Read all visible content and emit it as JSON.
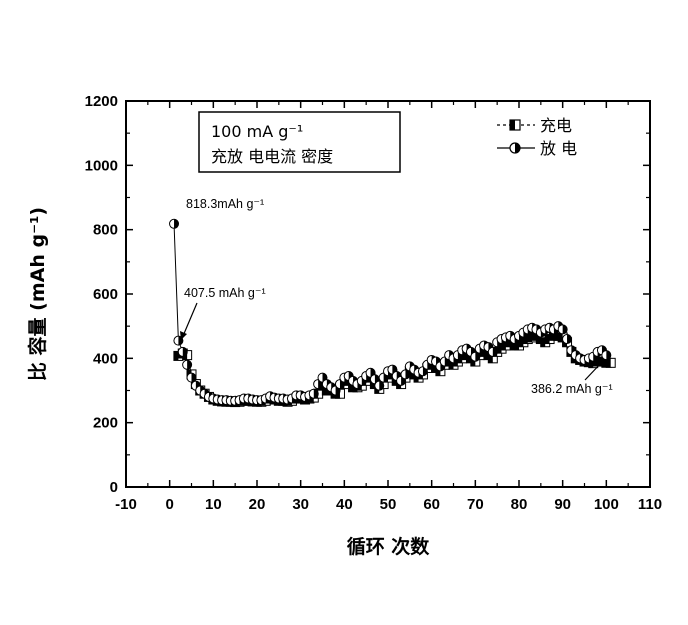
{
  "chart_data": {
    "type": "scatter",
    "xlabel": "循环 次数",
    "ylabel": "比 容量 (mAh g⁻¹)",
    "xlim": [
      -10,
      110
    ],
    "ylim": [
      0,
      1200
    ],
    "xticks": [
      "-10",
      "0",
      "10",
      "20",
      "30",
      "40",
      "50",
      "60",
      "70",
      "80",
      "90",
      "100",
      "110"
    ],
    "yticks": [
      "0",
      "200",
      "400",
      "600",
      "800",
      "1000",
      "1200"
    ],
    "info_box": [
      "100 mA g⁻¹",
      "充放 电电流 密度"
    ],
    "legend": {
      "position": "top-right",
      "charge": "充电",
      "discharge": "放 电"
    },
    "annotations": [
      {
        "text": "818.3mAh g⁻¹",
        "x": 1,
        "y": 818.3
      },
      {
        "text": "407.5 mAh g⁻¹",
        "x": 2,
        "y": 407.5
      },
      {
        "text": "386.2 mAh g⁻¹",
        "x": 100,
        "y": 386.2
      }
    ],
    "series": [
      {
        "name": "充电",
        "marker": "half-filled-square",
        "x": [
          2,
          3,
          4,
          5,
          6,
          7,
          8,
          9,
          10,
          11,
          12,
          13,
          14,
          15,
          16,
          17,
          18,
          19,
          20,
          21,
          22,
          23,
          24,
          25,
          26,
          27,
          28,
          29,
          30,
          31,
          32,
          33,
          34,
          35,
          36,
          37,
          38,
          39,
          40,
          41,
          42,
          43,
          44,
          45,
          46,
          47,
          48,
          49,
          50,
          51,
          52,
          53,
          54,
          55,
          56,
          57,
          58,
          59,
          60,
          61,
          62,
          63,
          64,
          65,
          66,
          67,
          68,
          69,
          70,
          71,
          72,
          73,
          74,
          75,
          76,
          77,
          78,
          79,
          80,
          81,
          82,
          83,
          84,
          85,
          86,
          87,
          88,
          89,
          90,
          91,
          92,
          93,
          94,
          95,
          96,
          97,
          98,
          99,
          100,
          101
        ],
        "y": [
          407.5,
          415,
          410,
          350,
          320,
          300,
          290,
          280,
          272,
          268,
          266,
          265,
          265,
          264,
          265,
          268,
          268,
          266,
          265,
          265,
          268,
          275,
          272,
          268,
          268,
          265,
          268,
          275,
          275,
          272,
          275,
          278,
          290,
          315,
          300,
          300,
          290,
          290,
          320,
          330,
          310,
          310,
          315,
          330,
          340,
          320,
          305,
          320,
          340,
          350,
          330,
          320,
          340,
          360,
          350,
          340,
          350,
          370,
          380,
          370,
          360,
          380,
          390,
          380,
          390,
          400,
          410,
          400,
          390,
          410,
          420,
          410,
          400,
          420,
          430,
          440,
          450,
          440,
          440,
          450,
          460,
          465,
          470,
          460,
          450,
          460,
          470,
          470,
          465,
          450,
          420,
          400,
          395,
          390,
          388,
          385,
          390,
          390,
          386.2,
          386
        ]
      },
      {
        "name": "放 电",
        "marker": "half-filled-circle",
        "x": [
          1,
          2,
          3,
          4,
          5,
          6,
          7,
          8,
          9,
          10,
          11,
          12,
          13,
          14,
          15,
          16,
          17,
          18,
          19,
          20,
          21,
          22,
          23,
          24,
          25,
          26,
          27,
          28,
          29,
          30,
          31,
          32,
          33,
          34,
          35,
          36,
          37,
          38,
          39,
          40,
          41,
          42,
          43,
          44,
          45,
          46,
          47,
          48,
          49,
          50,
          51,
          52,
          53,
          54,
          55,
          56,
          57,
          58,
          59,
          60,
          61,
          62,
          63,
          64,
          65,
          66,
          67,
          68,
          69,
          70,
          71,
          72,
          73,
          74,
          75,
          76,
          77,
          78,
          79,
          80,
          81,
          82,
          83,
          84,
          85,
          86,
          87,
          88,
          89,
          90,
          91,
          92,
          93,
          94,
          95,
          96,
          97,
          98,
          99,
          100
        ],
        "y": [
          818.3,
          455,
          420,
          380,
          340,
          315,
          300,
          290,
          280,
          275,
          272,
          270,
          270,
          268,
          268,
          270,
          275,
          275,
          272,
          270,
          270,
          275,
          282,
          278,
          275,
          275,
          272,
          275,
          285,
          285,
          280,
          285,
          290,
          320,
          340,
          320,
          310,
          300,
          320,
          340,
          345,
          330,
          320,
          330,
          345,
          355,
          335,
          315,
          340,
          360,
          365,
          345,
          330,
          350,
          375,
          365,
          355,
          360,
          380,
          395,
          390,
          375,
          390,
          410,
          400,
          410,
          425,
          430,
          420,
          405,
          430,
          440,
          435,
          420,
          450,
          460,
          465,
          470,
          460,
          470,
          480,
          490,
          495,
          490,
          480,
          490,
          495,
          490,
          500,
          490,
          460,
          425,
          410,
          400,
          395,
          400,
          405,
          420,
          425,
          410
        ]
      }
    ]
  }
}
